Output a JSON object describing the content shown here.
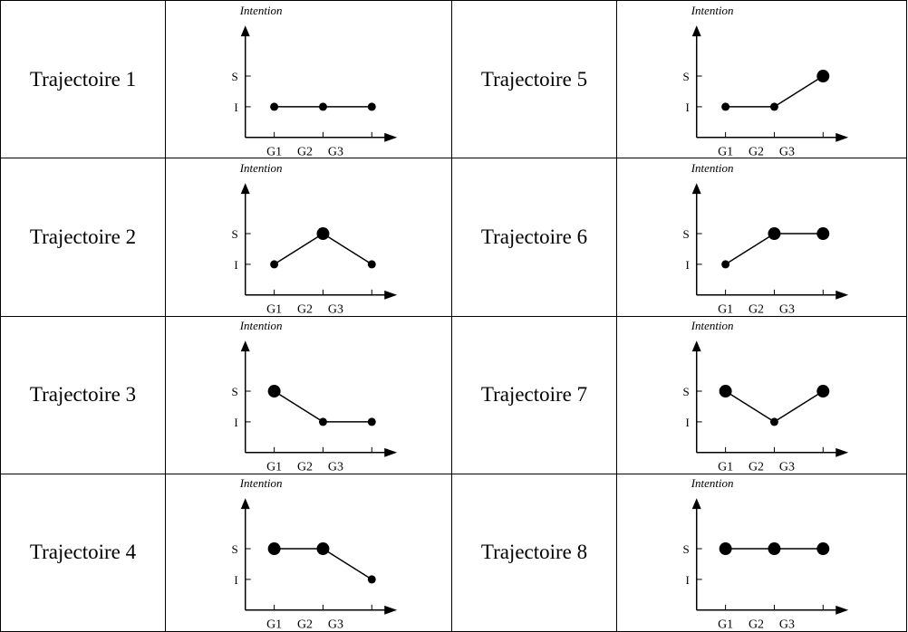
{
  "chart_data": {
    "type": "line",
    "y_axis_label": "Intention",
    "y_levels": [
      "I",
      "S"
    ],
    "x_categories": [
      "G1",
      "G2",
      "G3"
    ],
    "grid": false,
    "legend": "none",
    "trajectories": [
      {
        "name": "Trajectoire 1",
        "values": [
          "I",
          "I",
          "I"
        ]
      },
      {
        "name": "Trajectoire 2",
        "values": [
          "I",
          "S",
          "I"
        ]
      },
      {
        "name": "Trajectoire 3",
        "values": [
          "S",
          "I",
          "I"
        ]
      },
      {
        "name": "Trajectoire 4",
        "values": [
          "S",
          "S",
          "I"
        ]
      },
      {
        "name": "Trajectoire 5",
        "values": [
          "I",
          "I",
          "S"
        ]
      },
      {
        "name": "Trajectoire 6",
        "values": [
          "I",
          "S",
          "S"
        ]
      },
      {
        "name": "Trajectoire 7",
        "values": [
          "S",
          "I",
          "S"
        ]
      },
      {
        "name": "Trajectoire 8",
        "values": [
          "S",
          "S",
          "S"
        ]
      }
    ]
  },
  "colors": {
    "line": "#000000",
    "border": "#000000"
  }
}
